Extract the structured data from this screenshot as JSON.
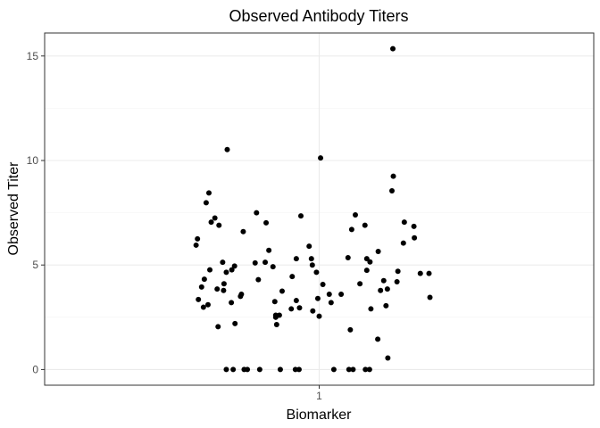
{
  "chart_data": {
    "type": "scatter",
    "title": "Observed Antibody Titers",
    "xlabel": "Biomarker",
    "ylabel": "Observed Titer",
    "x_categories": [
      "1"
    ],
    "xlim": [
      0.4,
      1.6
    ],
    "ylim": [
      -0.75,
      16.1
    ],
    "y_ticks": [
      0,
      5,
      10,
      15
    ],
    "grid": true,
    "points": [
      {
        "x": 0.731,
        "y": 5.95
      },
      {
        "x": 0.734,
        "y": 6.25
      },
      {
        "x": 0.736,
        "y": 3.35
      },
      {
        "x": 0.743,
        "y": 3.95
      },
      {
        "x": 0.747,
        "y": 2.98
      },
      {
        "x": 0.749,
        "y": 4.32
      },
      {
        "x": 0.753,
        "y": 7.98
      },
      {
        "x": 0.757,
        "y": 3.1
      },
      {
        "x": 0.759,
        "y": 8.45
      },
      {
        "x": 0.761,
        "y": 4.77
      },
      {
        "x": 0.764,
        "y": 7.05
      },
      {
        "x": 0.772,
        "y": 7.25
      },
      {
        "x": 0.777,
        "y": 3.85
      },
      {
        "x": 0.779,
        "y": 2.05
      },
      {
        "x": 0.781,
        "y": 6.9
      },
      {
        "x": 0.789,
        "y": 5.13
      },
      {
        "x": 0.791,
        "y": 3.78
      },
      {
        "x": 0.792,
        "y": 4.1
      },
      {
        "x": 0.797,
        "y": 4.65
      },
      {
        "x": 0.797,
        "y": 0.0
      },
      {
        "x": 0.799,
        "y": 10.52
      },
      {
        "x": 0.808,
        "y": 3.2
      },
      {
        "x": 0.809,
        "y": 4.77
      },
      {
        "x": 0.812,
        "y": 0.0
      },
      {
        "x": 0.815,
        "y": 4.95
      },
      {
        "x": 0.816,
        "y": 2.2
      },
      {
        "x": 0.828,
        "y": 3.5
      },
      {
        "x": 0.83,
        "y": 3.6
      },
      {
        "x": 0.834,
        "y": 6.6
      },
      {
        "x": 0.836,
        "y": 0.0
      },
      {
        "x": 0.843,
        "y": 0.0
      },
      {
        "x": 0.86,
        "y": 5.1
      },
      {
        "x": 0.863,
        "y": 7.5
      },
      {
        "x": 0.867,
        "y": 4.3
      },
      {
        "x": 0.87,
        "y": 0.0
      },
      {
        "x": 0.882,
        "y": 5.13
      },
      {
        "x": 0.884,
        "y": 7.02
      },
      {
        "x": 0.89,
        "y": 5.7
      },
      {
        "x": 0.899,
        "y": 4.92
      },
      {
        "x": 0.903,
        "y": 3.25
      },
      {
        "x": 0.905,
        "y": 2.5
      },
      {
        "x": 0.905,
        "y": 2.6
      },
      {
        "x": 0.907,
        "y": 2.15
      },
      {
        "x": 0.913,
        "y": 2.6
      },
      {
        "x": 0.915,
        "y": 0.0
      },
      {
        "x": 0.919,
        "y": 3.75
      },
      {
        "x": 0.939,
        "y": 2.9
      },
      {
        "x": 0.941,
        "y": 4.45
      },
      {
        "x": 0.948,
        "y": 0.0
      },
      {
        "x": 0.95,
        "y": 3.3
      },
      {
        "x": 0.95,
        "y": 5.3
      },
      {
        "x": 0.956,
        "y": 0.0
      },
      {
        "x": 0.957,
        "y": 2.95
      },
      {
        "x": 0.96,
        "y": 7.35
      },
      {
        "x": 0.978,
        "y": 5.9
      },
      {
        "x": 0.983,
        "y": 5.3
      },
      {
        "x": 0.985,
        "y": 5.0
      },
      {
        "x": 0.986,
        "y": 2.8
      },
      {
        "x": 0.994,
        "y": 4.65
      },
      {
        "x": 0.997,
        "y": 3.4
      },
      {
        "x": 1.0,
        "y": 2.55
      },
      {
        "x": 1.003,
        "y": 10.12
      },
      {
        "x": 1.008,
        "y": 4.07
      },
      {
        "x": 1.022,
        "y": 3.6
      },
      {
        "x": 1.026,
        "y": 3.2
      },
      {
        "x": 1.032,
        "y": 0.0
      },
      {
        "x": 1.048,
        "y": 3.6
      },
      {
        "x": 1.063,
        "y": 5.35
      },
      {
        "x": 1.065,
        "y": 0.0
      },
      {
        "x": 1.068,
        "y": 1.9
      },
      {
        "x": 1.071,
        "y": 6.7
      },
      {
        "x": 1.074,
        "y": 0.0
      },
      {
        "x": 1.079,
        "y": 7.4
      },
      {
        "x": 1.089,
        "y": 4.1
      },
      {
        "x": 1.1,
        "y": 6.9
      },
      {
        "x": 1.101,
        "y": 0.0
      },
      {
        "x": 1.104,
        "y": 4.75
      },
      {
        "x": 1.104,
        "y": 5.3
      },
      {
        "x": 1.11,
        "y": 0.0
      },
      {
        "x": 1.111,
        "y": 5.15
      },
      {
        "x": 1.113,
        "y": 2.9
      },
      {
        "x": 1.128,
        "y": 1.45
      },
      {
        "x": 1.129,
        "y": 5.65
      },
      {
        "x": 1.134,
        "y": 3.78
      },
      {
        "x": 1.141,
        "y": 4.25
      },
      {
        "x": 1.146,
        "y": 3.05
      },
      {
        "x": 1.149,
        "y": 3.85
      },
      {
        "x": 1.15,
        "y": 0.55
      },
      {
        "x": 1.159,
        "y": 8.55
      },
      {
        "x": 1.161,
        "y": 15.35
      },
      {
        "x": 1.162,
        "y": 9.25
      },
      {
        "x": 1.17,
        "y": 4.2
      },
      {
        "x": 1.172,
        "y": 4.7
      },
      {
        "x": 1.184,
        "y": 6.05
      },
      {
        "x": 1.186,
        "y": 7.05
      },
      {
        "x": 1.207,
        "y": 6.85
      },
      {
        "x": 1.208,
        "y": 6.3
      },
      {
        "x": 1.221,
        "y": 4.6
      },
      {
        "x": 1.24,
        "y": 4.6
      },
      {
        "x": 1.242,
        "y": 3.45
      }
    ]
  }
}
